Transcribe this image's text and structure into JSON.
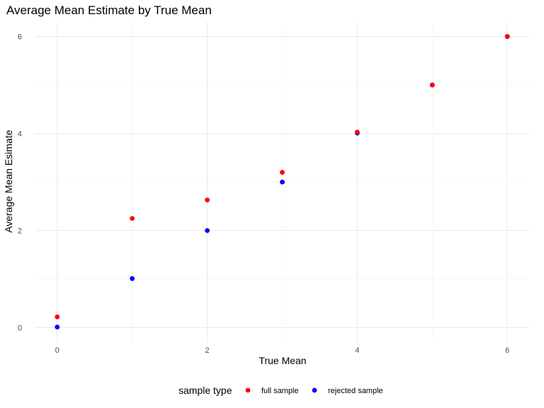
{
  "chart_data": {
    "type": "scatter",
    "title": "Average Mean Estimate by True Mean",
    "xlabel": "True Mean",
    "ylabel": "Average Mean Esimate",
    "xlim": [
      -0.3,
      6.3
    ],
    "ylim": [
      -0.3,
      6.3
    ],
    "x_ticks": [
      0,
      2,
      4,
      6
    ],
    "y_ticks": [
      0,
      2,
      4,
      6
    ],
    "x_tick_labels": [
      "0",
      "2",
      "4",
      "6"
    ],
    "y_tick_labels": [
      "0",
      "2",
      "4",
      "6"
    ],
    "grid": true,
    "legend": {
      "title": "sample type",
      "placement": "bottom"
    },
    "series": [
      {
        "name": "full sample",
        "color": "#ff0000",
        "points": [
          {
            "x": 0,
            "y": 0.22
          },
          {
            "x": 1,
            "y": 2.25
          },
          {
            "x": 2,
            "y": 2.63
          },
          {
            "x": 3,
            "y": 3.2
          },
          {
            "x": 4,
            "y": 4.03
          },
          {
            "x": 5,
            "y": 5.0
          },
          {
            "x": 6,
            "y": 6.0
          }
        ]
      },
      {
        "name": "rejected sample",
        "color": "#0000ff",
        "points": [
          {
            "x": 0,
            "y": 0.01
          },
          {
            "x": 1,
            "y": 1.01
          },
          {
            "x": 2,
            "y": 2.0
          },
          {
            "x": 3,
            "y": 3.0
          },
          {
            "x": 4,
            "y": 4.01
          },
          {
            "x": 5,
            "y": 5.0
          },
          {
            "x": 6,
            "y": 6.0
          }
        ]
      }
    ]
  }
}
